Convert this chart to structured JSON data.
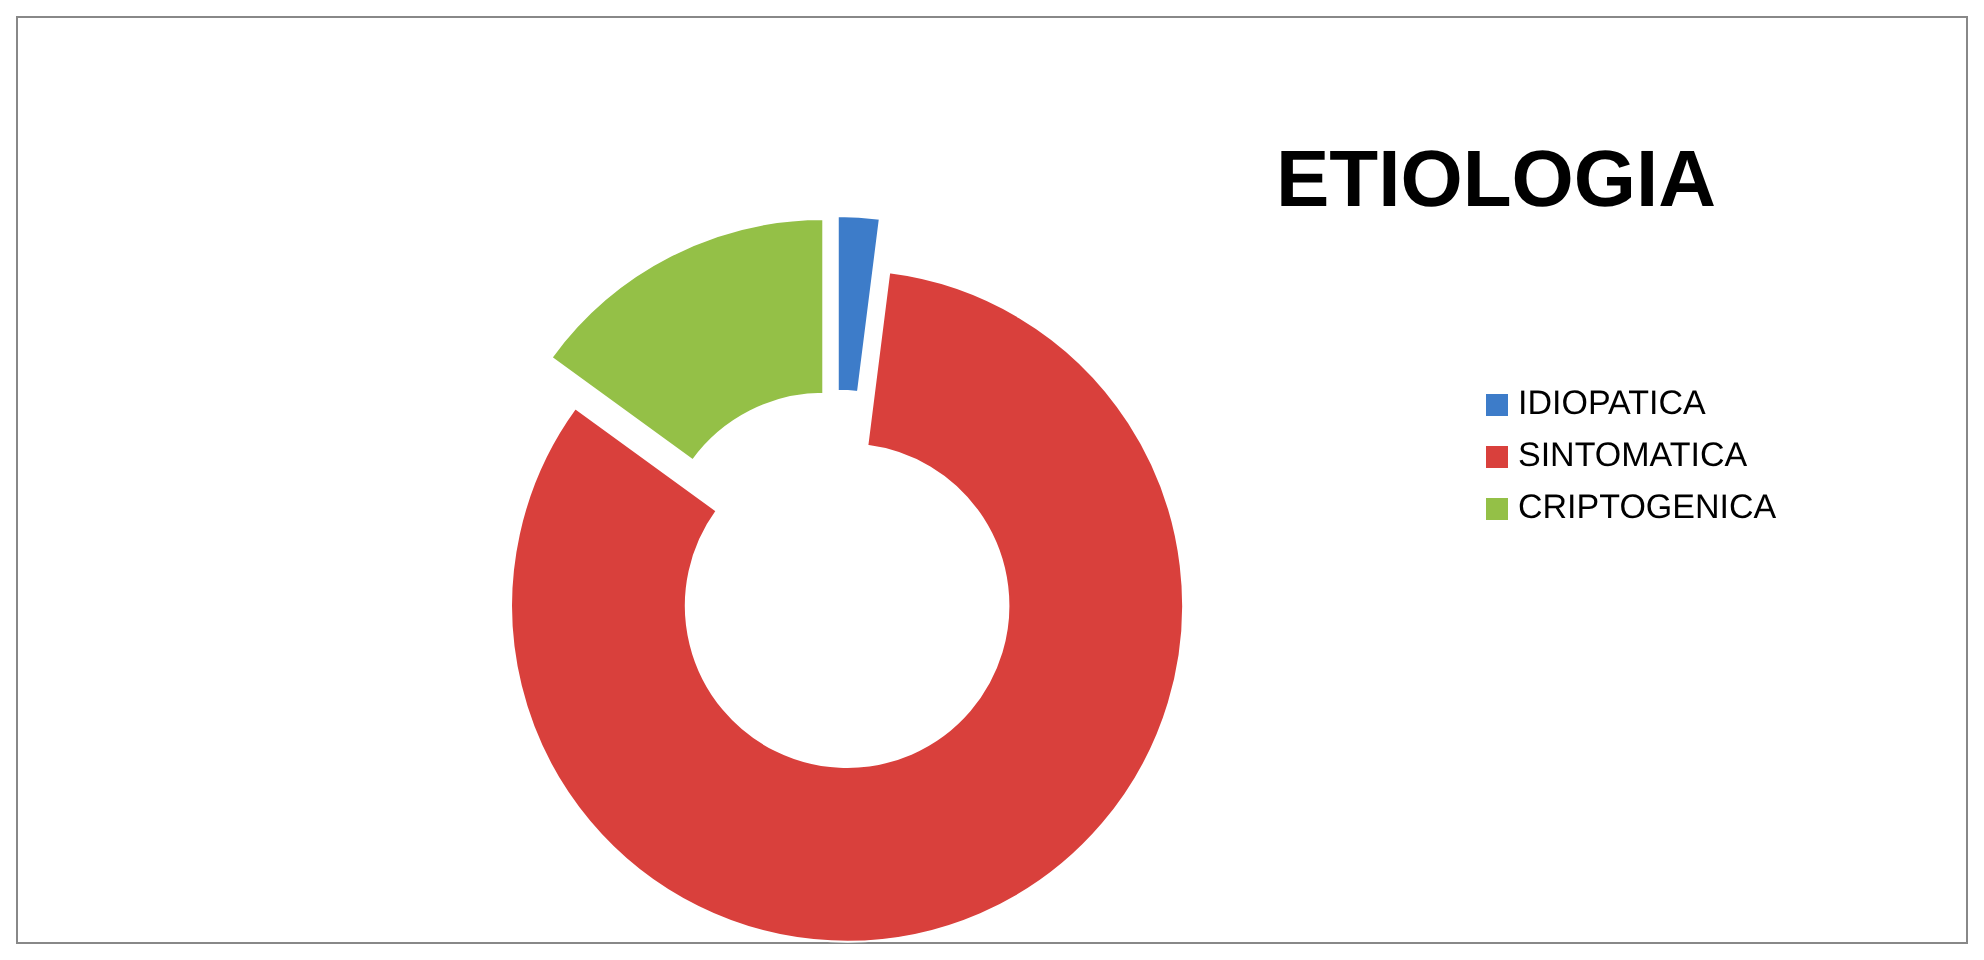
{
  "chart_data": {
    "type": "donut",
    "title": "ETIOLOGIA",
    "categories": [
      "IDIOPATICA",
      "SINTOMATICA",
      "CRIPTOGENICA"
    ],
    "values": [
      2,
      83,
      15
    ],
    "colors": [
      "#3d7cc9",
      "#d9403c",
      "#94c047"
    ],
    "legend": "right"
  }
}
